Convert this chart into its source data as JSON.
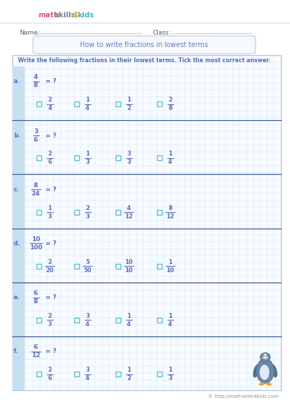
{
  "title": "How to write fractions in lowest terms",
  "name_label": "Name:",
  "class_label": "Class:",
  "instruction": "Write the following fractions in their lowest terms. Tick the most correct answer.",
  "bg_color": "#ffffff",
  "grid_color": "#c8dce8",
  "title_color": "#6b7abf",
  "label_color": "#5b6bbf",
  "box_color": "#50c0d0",
  "separator_color": "#3a5898",
  "left_bar_color": "#c8dff0",
  "questions": [
    {
      "letter": "a.",
      "fraction": {
        "num": "4",
        "den": "8"
      },
      "choices": [
        {
          "num": "2",
          "den": "4"
        },
        {
          "num": "1",
          "den": "4"
        },
        {
          "num": "1",
          "den": "2"
        },
        {
          "num": "2",
          "den": "8"
        }
      ]
    },
    {
      "letter": "b.",
      "fraction": {
        "num": "3",
        "den": "6"
      },
      "choices": [
        {
          "num": "2",
          "den": "6"
        },
        {
          "num": "1",
          "den": "3"
        },
        {
          "num": "3",
          "den": "3"
        },
        {
          "num": "1",
          "den": "4"
        }
      ]
    },
    {
      "letter": "c.",
      "fraction": {
        "num": "8",
        "den": "24"
      },
      "choices": [
        {
          "num": "1",
          "den": "3"
        },
        {
          "num": "2",
          "den": "3"
        },
        {
          "num": "4",
          "den": "12"
        },
        {
          "num": "8",
          "den": "12"
        }
      ]
    },
    {
      "letter": "d.",
      "fraction": {
        "num": "10",
        "den": "100"
      },
      "choices": [
        {
          "num": "2",
          "den": "20"
        },
        {
          "num": "5",
          "den": "50"
        },
        {
          "num": "10",
          "den": "10"
        },
        {
          "num": "1",
          "den": "10"
        }
      ]
    },
    {
      "letter": "e.",
      "fraction": {
        "num": "6",
        "den": "8"
      },
      "choices": [
        {
          "num": "2",
          "den": "3"
        },
        {
          "num": "3",
          "den": "4"
        },
        {
          "num": "1",
          "den": "4"
        },
        {
          "num": "1",
          "den": "4"
        }
      ]
    },
    {
      "letter": "f.",
      "fraction": {
        "num": "6",
        "den": "12"
      },
      "choices": [
        {
          "num": "2",
          "den": "6"
        },
        {
          "num": "3",
          "den": "4"
        },
        {
          "num": "1",
          "den": "2"
        },
        {
          "num": "1",
          "den": "3"
        }
      ]
    }
  ],
  "copyright": "© http://mathskills4kids.com",
  "fraction_color": "#5b6bbf",
  "choice_color": "#5b6bbf",
  "figw": 4.21,
  "figh": 5.95,
  "dpi": 100
}
